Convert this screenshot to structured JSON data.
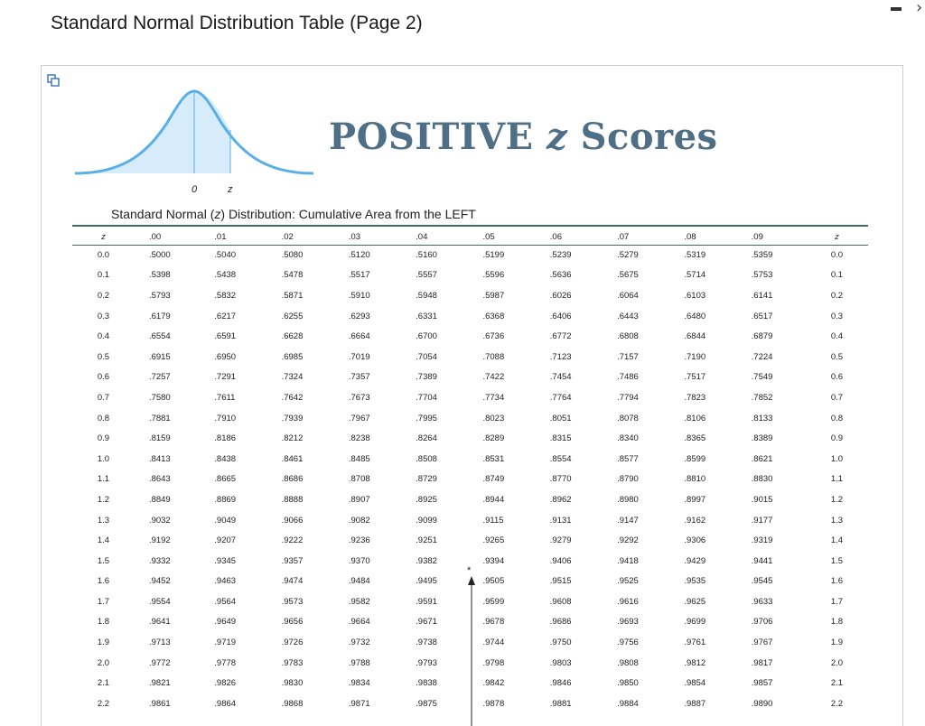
{
  "window": {
    "title": "Standard Normal Distribution Table (Page 2)",
    "minimize_icon": "minimize-icon",
    "close_icon": "close-icon"
  },
  "figure": {
    "heading_prefix": "POSITIVE ",
    "heading_var": "z",
    "heading_suffix": " Scores",
    "curve_label_zero": "0",
    "curve_label_z": "z",
    "colors": {
      "curve": "#5ab0e6",
      "fill": "#d6ecfa",
      "heading": "#4f6f86",
      "rule": "#3e6a63"
    }
  },
  "table": {
    "caption_pre": "Standard Normal (",
    "caption_var": "z",
    "caption_post": ") Distribution: Cumulative Area from the LEFT",
    "z_header": "z",
    "columns": [
      ".00",
      ".01",
      ".02",
      ".03",
      ".04",
      ".05",
      ".06",
      ".07",
      ".08",
      ".09"
    ],
    "rows": [
      {
        "z": "0.0",
        "values": [
          ".5000",
          ".5040",
          ".5080",
          ".5120",
          ".5160",
          ".5199",
          ".5239",
          ".5279",
          ".5319",
          ".5359"
        ]
      },
      {
        "z": "0.1",
        "values": [
          ".5398",
          ".5438",
          ".5478",
          ".5517",
          ".5557",
          ".5596",
          ".5636",
          ".5675",
          ".5714",
          ".5753"
        ]
      },
      {
        "z": "0.2",
        "values": [
          ".5793",
          ".5832",
          ".5871",
          ".5910",
          ".5948",
          ".5987",
          ".6026",
          ".6064",
          ".6103",
          ".6141"
        ]
      },
      {
        "z": "0.3",
        "values": [
          ".6179",
          ".6217",
          ".6255",
          ".6293",
          ".6331",
          ".6368",
          ".6406",
          ".6443",
          ".6480",
          ".6517"
        ]
      },
      {
        "z": "0.4",
        "values": [
          ".6554",
          ".6591",
          ".6628",
          ".6664",
          ".6700",
          ".6736",
          ".6772",
          ".6808",
          ".6844",
          ".6879"
        ]
      },
      {
        "z": "0.5",
        "values": [
          ".6915",
          ".6950",
          ".6985",
          ".7019",
          ".7054",
          ".7088",
          ".7123",
          ".7157",
          ".7190",
          ".7224"
        ]
      },
      {
        "z": "0.6",
        "values": [
          ".7257",
          ".7291",
          ".7324",
          ".7357",
          ".7389",
          ".7422",
          ".7454",
          ".7486",
          ".7517",
          ".7549"
        ]
      },
      {
        "z": "0.7",
        "values": [
          ".7580",
          ".7611",
          ".7642",
          ".7673",
          ".7704",
          ".7734",
          ".7764",
          ".7794",
          ".7823",
          ".7852"
        ]
      },
      {
        "z": "0.8",
        "values": [
          ".7881",
          ".7910",
          ".7939",
          ".7967",
          ".7995",
          ".8023",
          ".8051",
          ".8078",
          ".8106",
          ".8133"
        ]
      },
      {
        "z": "0.9",
        "values": [
          ".8159",
          ".8186",
          ".8212",
          ".8238",
          ".8264",
          ".8289",
          ".8315",
          ".8340",
          ".8365",
          ".8389"
        ]
      },
      {
        "z": "1.0",
        "values": [
          ".8413",
          ".8438",
          ".8461",
          ".8485",
          ".8508",
          ".8531",
          ".8554",
          ".8577",
          ".8599",
          ".8621"
        ]
      },
      {
        "z": "1.1",
        "values": [
          ".8643",
          ".8665",
          ".8686",
          ".8708",
          ".8729",
          ".8749",
          ".8770",
          ".8790",
          ".8810",
          ".8830"
        ]
      },
      {
        "z": "1.2",
        "values": [
          ".8849",
          ".8869",
          ".8888",
          ".8907",
          ".8925",
          ".8944",
          ".8962",
          ".8980",
          ".8997",
          ".9015"
        ]
      },
      {
        "z": "1.3",
        "values": [
          ".9032",
          ".9049",
          ".9066",
          ".9082",
          ".9099",
          ".9115",
          ".9131",
          ".9147",
          ".9162",
          ".9177"
        ]
      },
      {
        "z": "1.4",
        "values": [
          ".9192",
          ".9207",
          ".9222",
          ".9236",
          ".9251",
          ".9265",
          ".9279",
          ".9292",
          ".9306",
          ".9319"
        ]
      },
      {
        "z": "1.5",
        "values": [
          ".9332",
          ".9345",
          ".9357",
          ".9370",
          ".9382",
          ".9394",
          ".9406",
          ".9418",
          ".9429",
          ".9441"
        ]
      },
      {
        "z": "1.6",
        "values": [
          ".9452",
          ".9463",
          ".9474",
          ".9484",
          ".9495",
          ".9505",
          ".9515",
          ".9525",
          ".9535",
          ".9545"
        ]
      },
      {
        "z": "1.7",
        "values": [
          ".9554",
          ".9564",
          ".9573",
          ".9582",
          ".9591",
          ".9599",
          ".9608",
          ".9616",
          ".9625",
          ".9633"
        ]
      },
      {
        "z": "1.8",
        "values": [
          ".9641",
          ".9649",
          ".9656",
          ".9664",
          ".9671",
          ".9678",
          ".9686",
          ".9693",
          ".9699",
          ".9706"
        ]
      },
      {
        "z": "1.9",
        "values": [
          ".9713",
          ".9719",
          ".9726",
          ".9732",
          ".9738",
          ".9744",
          ".9750",
          ".9756",
          ".9761",
          ".9767"
        ]
      },
      {
        "z": "2.0",
        "values": [
          ".9772",
          ".9778",
          ".9783",
          ".9788",
          ".9793",
          ".9798",
          ".9803",
          ".9808",
          ".9812",
          ".9817"
        ]
      },
      {
        "z": "2.1",
        "values": [
          ".9821",
          ".9826",
          ".9830",
          ".9834",
          ".9838",
          ".9842",
          ".9846",
          ".9850",
          ".9854",
          ".9857"
        ]
      },
      {
        "z": "2.2",
        "values": [
          ".9861",
          ".9864",
          ".9868",
          ".9871",
          ".9875",
          ".9878",
          ".9881",
          ".9884",
          ".9887",
          ".9890"
        ]
      }
    ],
    "marker": "*"
  }
}
